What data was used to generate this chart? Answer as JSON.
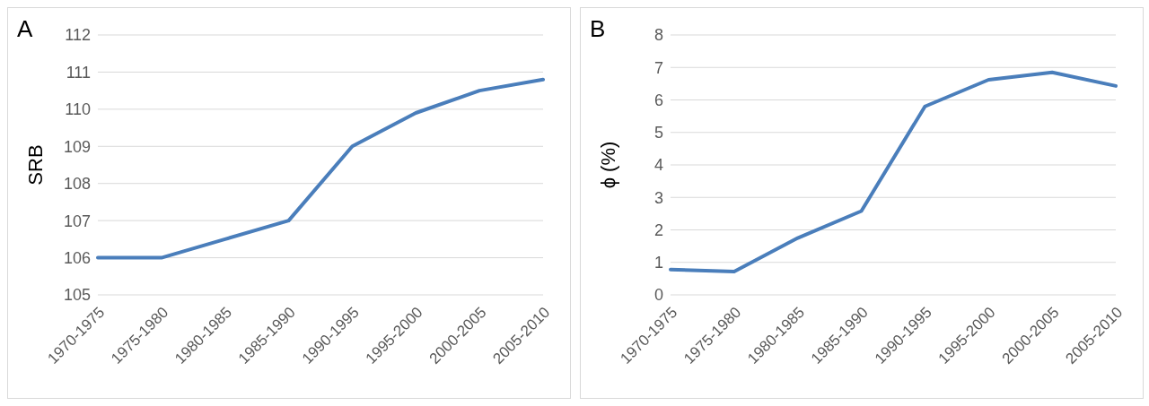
{
  "chart_data": [
    {
      "type": "line",
      "title": "A",
      "ylabel": "SRB",
      "categories": [
        "1970-1975",
        "1975-1980",
        "1980-1985",
        "1985-1990",
        "1990-1995",
        "1995-2000",
        "2000-2005",
        "2005-2010"
      ],
      "series": [
        {
          "color": "#4a7ebb",
          "values": [
            106,
            106,
            106.5,
            107,
            109,
            109.9,
            110.5,
            110.8
          ]
        }
      ],
      "ylim": [
        105,
        112
      ],
      "yticks": [
        105,
        106,
        107,
        108,
        109,
        110,
        111,
        112
      ],
      "grid": "y"
    },
    {
      "type": "line",
      "title": "B",
      "ylabel": "ϕ (%)",
      "categories": [
        "1970-1975",
        "1975-1980",
        "1980-1985",
        "1985-1990",
        "1990-1995",
        "1995-2000",
        "2000-2005",
        "2005-2010"
      ],
      "series": [
        {
          "color": "#4a7ebb",
          "values": [
            0.78,
            0.72,
            1.75,
            2.58,
            5.8,
            6.62,
            6.85,
            6.43
          ]
        }
      ],
      "ylim": [
        0,
        8
      ],
      "yticks": [
        0,
        1,
        2,
        3,
        4,
        5,
        6,
        7,
        8
      ],
      "grid": "y"
    }
  ]
}
